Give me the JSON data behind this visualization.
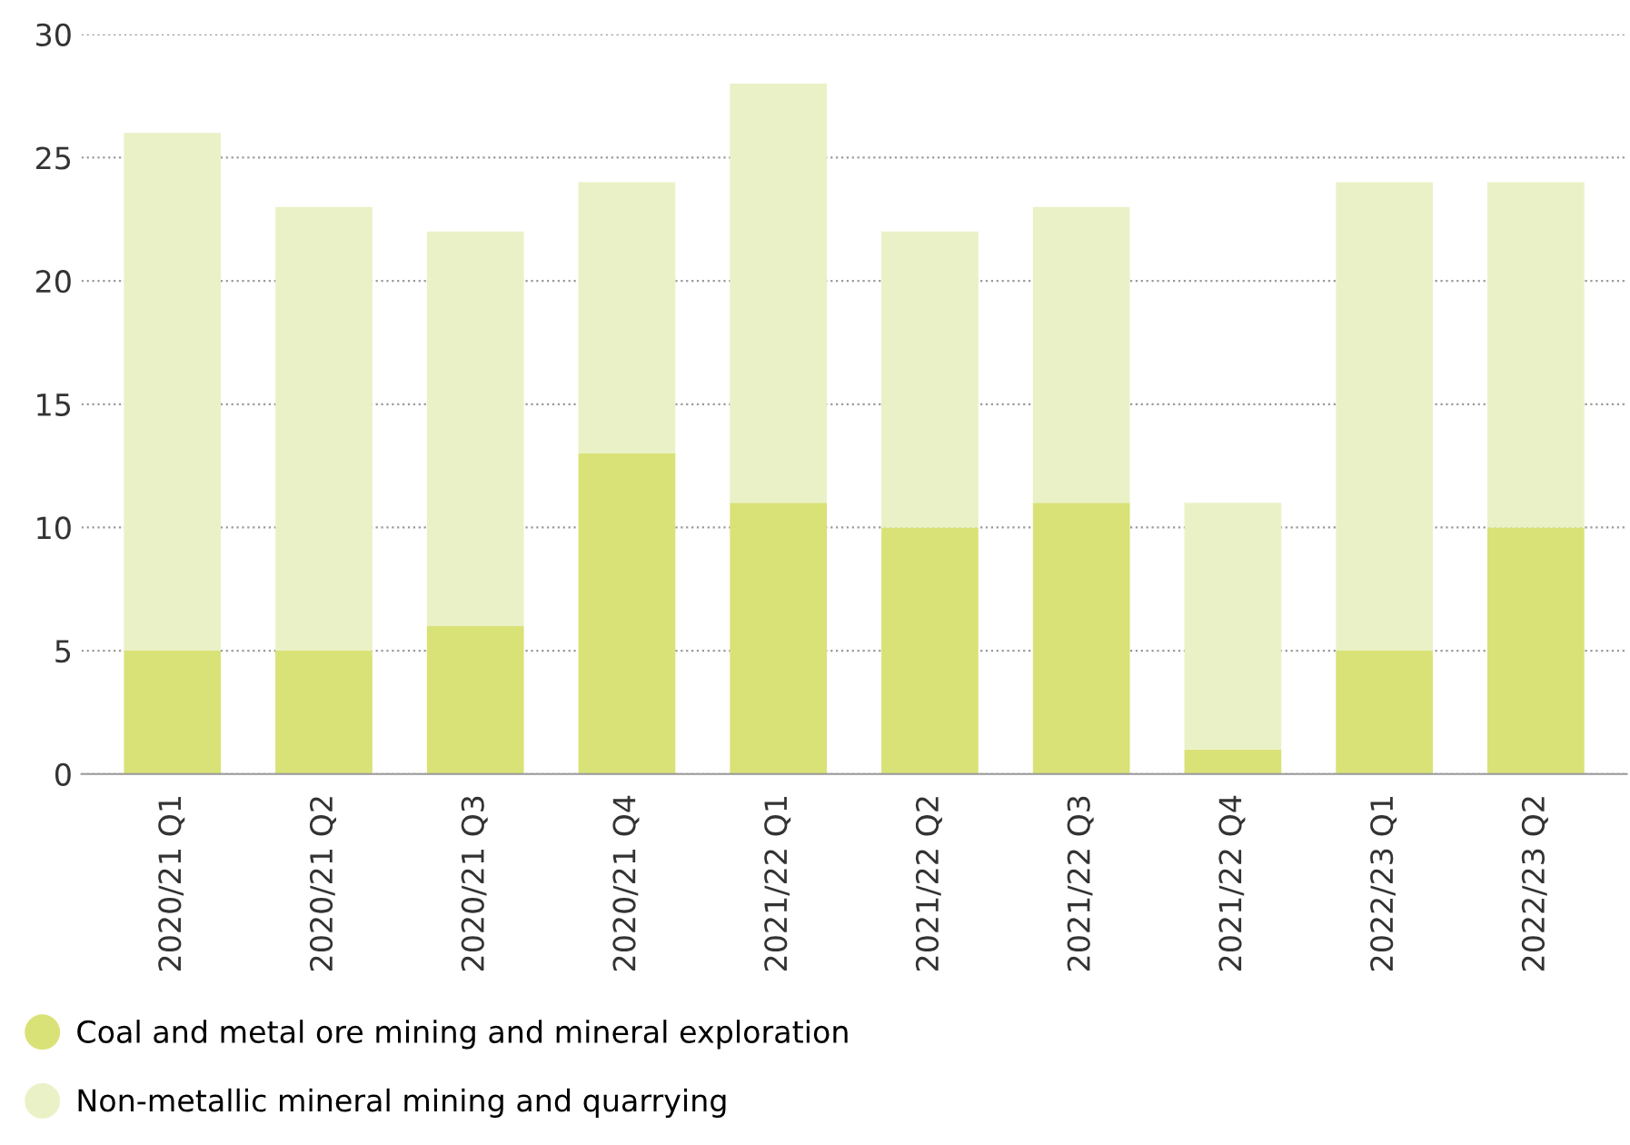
{
  "chart_data": {
    "type": "bar",
    "stacked": true,
    "categories": [
      "2020/21 Q1",
      "2020/21 Q2",
      "2020/21 Q3",
      "2020/21 Q4",
      "2021/22 Q1",
      "2021/22 Q2",
      "2021/22 Q3",
      "2021/22 Q4",
      "2022/23 Q1",
      "2022/23 Q2"
    ],
    "series": [
      {
        "name": "Coal and metal ore mining and mineral exploration",
        "color": "#d9e276",
        "values": [
          5,
          5,
          6,
          13,
          11,
          10,
          11,
          1,
          5,
          10
        ]
      },
      {
        "name": "Non-metallic mineral mining and quarrying",
        "color": "#ebf1c6",
        "values": [
          21,
          18,
          16,
          11,
          17,
          12,
          12,
          10,
          19,
          14
        ]
      }
    ],
    "ylim": [
      0,
      30
    ],
    "yticks": [
      0,
      5,
      10,
      15,
      20,
      25,
      30
    ],
    "grid": "y",
    "legend": "bottom left"
  }
}
